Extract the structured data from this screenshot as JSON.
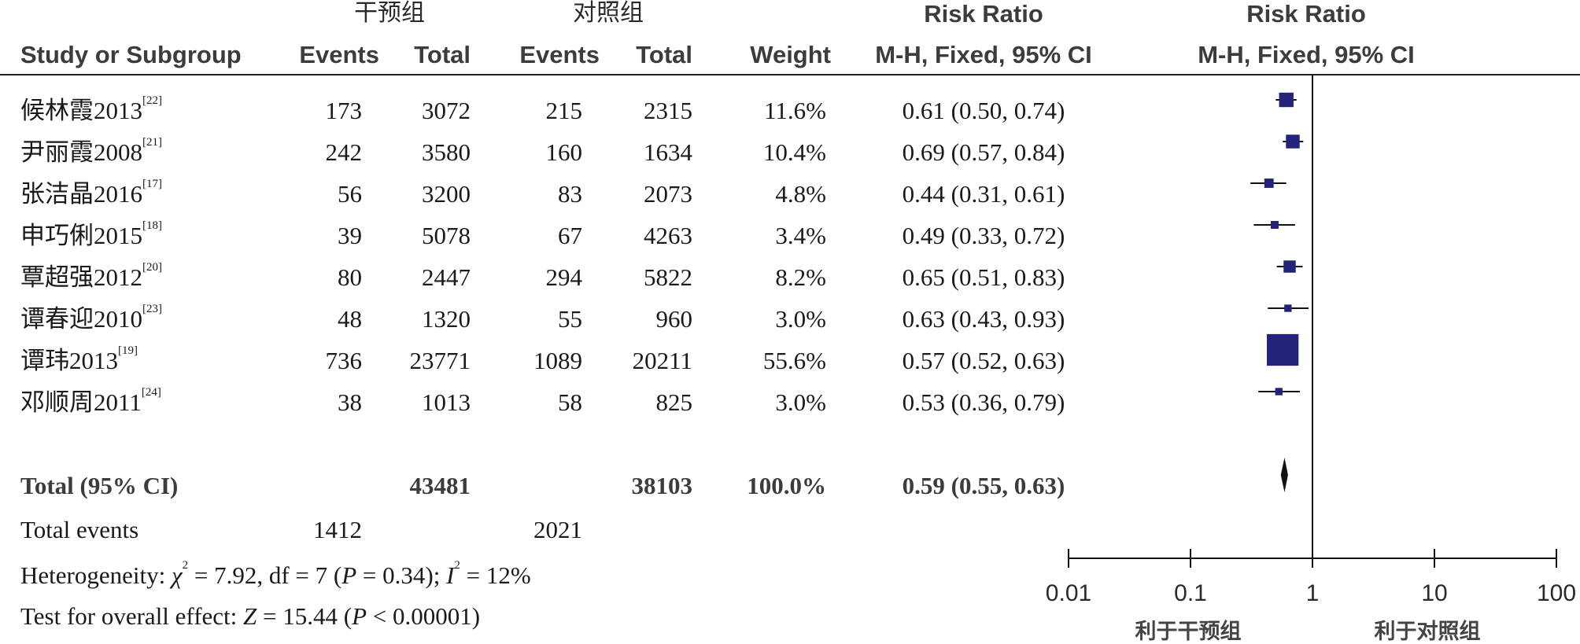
{
  "header": {
    "group1": "干预组",
    "group2": "对照组",
    "rr_title_left": "Risk Ratio",
    "rr_title_right": "Risk Ratio",
    "study_col": "Study or Subgroup",
    "events1": "Events",
    "total1": "Total",
    "events2": "Events",
    "total2": "Total",
    "weight": "Weight",
    "method_left": "M-H, Fixed, 95% CI",
    "method_right": "M-H, Fixed, 95% CI"
  },
  "studies": [
    {
      "name": "候林霞2013",
      "ref": "[22]",
      "events1": "173",
      "total1": "3072",
      "events2": "215",
      "total2": "2315",
      "weight": "11.6%",
      "ci_text": "0.61 (0.50, 0.74)"
    },
    {
      "name": "尹丽霞2008",
      "ref": "[21]",
      "events1": "242",
      "total1": "3580",
      "events2": "160",
      "total2": "1634",
      "weight": "10.4%",
      "ci_text": "0.69 (0.57, 0.84)"
    },
    {
      "name": "张洁晶2016",
      "ref": "[17]",
      "events1": "56",
      "total1": "3200",
      "events2": "83",
      "total2": "2073",
      "weight": "4.8%",
      "ci_text": "0.44 (0.31, 0.61)"
    },
    {
      "name": "申巧俐2015",
      "ref": "[18]",
      "events1": "39",
      "total1": "5078",
      "events2": "67",
      "total2": "4263",
      "weight": "3.4%",
      "ci_text": "0.49 (0.33, 0.72)"
    },
    {
      "name": "覃超强2012",
      "ref": "[20]",
      "events1": "80",
      "total1": "2447",
      "events2": "294",
      "total2": "5822",
      "weight": "8.2%",
      "ci_text": "0.65 (0.51, 0.83)"
    },
    {
      "name": "谭春迎2010",
      "ref": "[23]",
      "events1": "48",
      "total1": "1320",
      "events2": "55",
      "total2": "960",
      "weight": "3.0%",
      "ci_text": "0.63 (0.43, 0.93)"
    },
    {
      "name": "谭玮2013",
      "ref": "[19]",
      "events1": "736",
      "total1": "23771",
      "events2": "1089",
      "total2": "20211",
      "weight": "55.6%",
      "ci_text": "0.57 (0.52, 0.63)"
    },
    {
      "name": "邓顺周2011",
      "ref": "[24]",
      "events1": "38",
      "total1": "1013",
      "events2": "58",
      "total2": "825",
      "weight": "3.0%",
      "ci_text": "0.53 (0.36, 0.79)"
    }
  ],
  "total_row": {
    "label": "Total (95% CI)",
    "total1": "43481",
    "total2": "38103",
    "weight": "100.0%",
    "ci_text": "0.59 (0.55, 0.63)"
  },
  "events_row": {
    "label": "Total events",
    "events1": "1412",
    "events2": "2021"
  },
  "heterogeneity": {
    "prefix": "Heterogeneity: ",
    "chi": "χ",
    "chi_rest": " = 7.92, df = 7 (",
    "p": "P",
    "p_rest": " = 0.34); ",
    "i": "I",
    "i_rest": " = 12%"
  },
  "overall": {
    "prefix": "Test for overall effect: ",
    "z": "Z",
    "z_rest": " = 15.44 (",
    "p": "P",
    "p_rest": " < 0.00001)"
  },
  "axis": {
    "ticks": [
      "0.01",
      "0.1",
      "1",
      "10",
      "100"
    ],
    "favours_left": "利于干预组",
    "favours_right": "利于对照组"
  },
  "colors": {
    "marker": "#23237a",
    "line": "#111111",
    "text": "#1a1a1a"
  },
  "chart_data": {
    "type": "forest",
    "scale": "log",
    "xlim": [
      0.01,
      100
    ],
    "reference_line": 1,
    "studies": [
      {
        "rr": 0.61,
        "lo": 0.5,
        "hi": 0.74,
        "weight": 11.6
      },
      {
        "rr": 0.69,
        "lo": 0.57,
        "hi": 0.84,
        "weight": 10.4
      },
      {
        "rr": 0.44,
        "lo": 0.31,
        "hi": 0.61,
        "weight": 4.8
      },
      {
        "rr": 0.49,
        "lo": 0.33,
        "hi": 0.72,
        "weight": 3.4
      },
      {
        "rr": 0.65,
        "lo": 0.51,
        "hi": 0.83,
        "weight": 8.2
      },
      {
        "rr": 0.63,
        "lo": 0.43,
        "hi": 0.93,
        "weight": 3.0
      },
      {
        "rr": 0.57,
        "lo": 0.52,
        "hi": 0.63,
        "weight": 55.6
      },
      {
        "rr": 0.53,
        "lo": 0.36,
        "hi": 0.79,
        "weight": 3.0
      }
    ],
    "pooled": {
      "rr": 0.59,
      "lo": 0.55,
      "hi": 0.63
    }
  }
}
